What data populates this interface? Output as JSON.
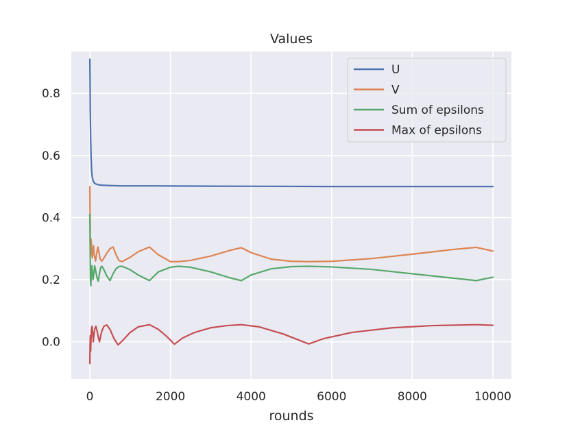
{
  "chart_data": {
    "type": "line",
    "title": "Values",
    "xlabel": "rounds",
    "ylabel": "",
    "xlim": [
      -460,
      10460
    ],
    "ylim": [
      -0.12,
      0.935
    ],
    "xticks": [
      0,
      2000,
      4000,
      6000,
      8000,
      10000
    ],
    "xtick_labels": [
      "0",
      "2000",
      "4000",
      "6000",
      "8000",
      "10000"
    ],
    "yticks": [
      0.0,
      0.2,
      0.4,
      0.6,
      0.8
    ],
    "ytick_labels": [
      "0.0",
      "0.2",
      "0.4",
      "0.6",
      "0.8"
    ],
    "grid": true,
    "legend_position": "top-right",
    "series": [
      {
        "name": "U",
        "color": "#4c72b0",
        "x": [
          0,
          5,
          10,
          20,
          30,
          45,
          60,
          80,
          100,
          150,
          200,
          300,
          500,
          800,
          1500,
          3000,
          6000,
          10000
        ],
        "y": [
          0.91,
          0.85,
          0.75,
          0.66,
          0.6,
          0.55,
          0.53,
          0.52,
          0.513,
          0.508,
          0.506,
          0.504,
          0.503,
          0.502,
          0.502,
          0.501,
          0.5,
          0.5
        ]
      },
      {
        "name": "V",
        "color": "#dd8452",
        "x": [
          0,
          10,
          20,
          30,
          45,
          60,
          75,
          90,
          110,
          140,
          170,
          200,
          230,
          260,
          300,
          350,
          420,
          500,
          580,
          650,
          720,
          800,
          1000,
          1200,
          1480,
          1700,
          2000,
          2200,
          2500,
          3000,
          3500,
          3760,
          4000,
          4500,
          5000,
          5430,
          6000,
          7000,
          8000,
          9000,
          9590,
          10000
        ],
        "y": [
          0.5,
          0.35,
          0.28,
          0.33,
          0.3,
          0.27,
          0.29,
          0.31,
          0.28,
          0.26,
          0.285,
          0.305,
          0.285,
          0.265,
          0.26,
          0.27,
          0.285,
          0.3,
          0.305,
          0.28,
          0.262,
          0.258,
          0.272,
          0.29,
          0.305,
          0.28,
          0.258,
          0.258,
          0.262,
          0.276,
          0.295,
          0.303,
          0.287,
          0.266,
          0.259,
          0.258,
          0.259,
          0.268,
          0.282,
          0.297,
          0.304,
          0.292
        ]
      },
      {
        "name": "Sum of epsilons",
        "color": "#55a868",
        "x": [
          0,
          8,
          15,
          25,
          35,
          50,
          65,
          80,
          100,
          120,
          150,
          180,
          210,
          240,
          270,
          300,
          350,
          420,
          500,
          580,
          650,
          720,
          800,
          1000,
          1200,
          1480,
          1700,
          2000,
          2200,
          2500,
          3000,
          3500,
          3760,
          4000,
          4500,
          5000,
          5430,
          6000,
          7000,
          8000,
          9000,
          9590,
          10000
        ],
        "y": [
          0.41,
          0.3,
          0.2,
          0.18,
          0.22,
          0.245,
          0.22,
          0.2,
          0.22,
          0.245,
          0.225,
          0.205,
          0.195,
          0.22,
          0.24,
          0.243,
          0.232,
          0.212,
          0.197,
          0.22,
          0.235,
          0.242,
          0.243,
          0.232,
          0.215,
          0.197,
          0.225,
          0.24,
          0.243,
          0.24,
          0.225,
          0.205,
          0.197,
          0.215,
          0.235,
          0.242,
          0.243,
          0.241,
          0.233,
          0.219,
          0.205,
          0.197,
          0.208
        ]
      },
      {
        "name": "Max of epsilons",
        "color": "#c44e52",
        "x": [
          0,
          6,
          12,
          20,
          30,
          40,
          55,
          70,
          85,
          100,
          120,
          150,
          180,
          210,
          240,
          270,
          300,
          350,
          420,
          500,
          600,
          700,
          800,
          1000,
          1200,
          1480,
          1700,
          1900,
          2100,
          2300,
          2600,
          3000,
          3400,
          3760,
          4200,
          4800,
          5430,
          5800,
          6500,
          7500,
          8500,
          9590,
          10000
        ],
        "y": [
          -0.07,
          -0.01,
          0.02,
          -0.03,
          0.01,
          0.04,
          0.05,
          0.03,
          0.0,
          0.02,
          0.04,
          0.05,
          0.035,
          0.015,
          0.0,
          0.02,
          0.035,
          0.05,
          0.054,
          0.04,
          0.01,
          -0.01,
          0.002,
          0.03,
          0.048,
          0.055,
          0.04,
          0.018,
          -0.008,
          0.012,
          0.03,
          0.045,
          0.052,
          0.055,
          0.048,
          0.025,
          -0.007,
          0.01,
          0.03,
          0.045,
          0.052,
          0.055,
          0.053
        ]
      }
    ]
  }
}
